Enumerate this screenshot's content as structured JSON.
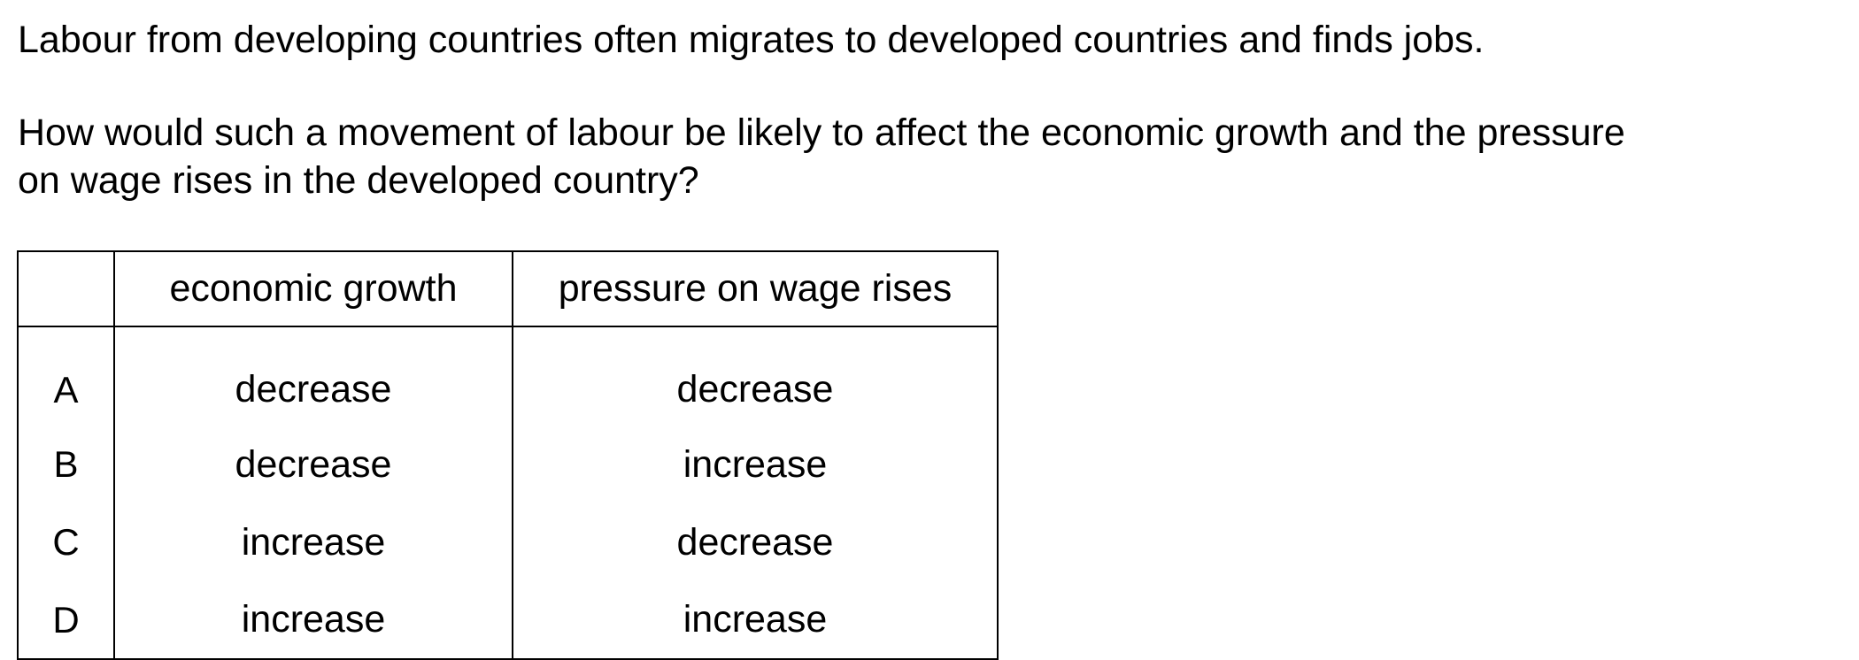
{
  "question": {
    "stem": "Labour from developing countries often migrates to developed countries and finds jobs.",
    "prompt_line_1": "How would such a movement of labour be likely to affect the economic growth and the pressure",
    "prompt_line_2": "on wage rises in the developed country?"
  },
  "table": {
    "headers": [
      "",
      "economic growth",
      "pressure on wage rises"
    ],
    "rows": [
      {
        "key": "A",
        "growth": "decrease",
        "wage": "decrease"
      },
      {
        "key": "B",
        "growth": "decrease",
        "wage": "increase"
      },
      {
        "key": "C",
        "growth": "increase",
        "wage": "decrease"
      },
      {
        "key": "D",
        "growth": "increase",
        "wage": "increase"
      }
    ]
  }
}
